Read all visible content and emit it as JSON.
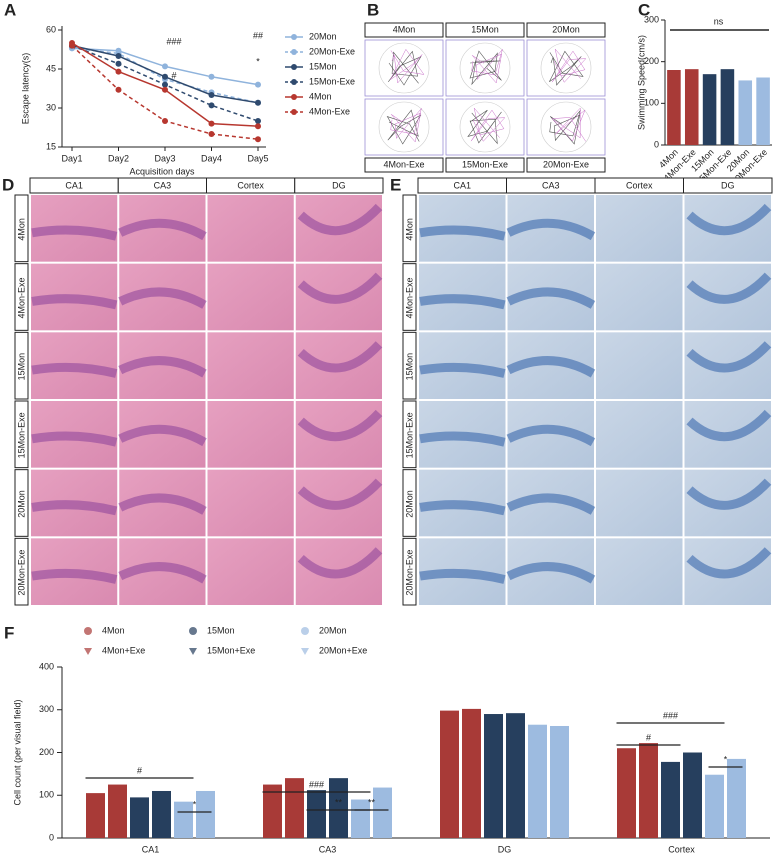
{
  "chart_data": [
    {
      "type": "line",
      "label": "A",
      "ylabel": "Escape latency(s)",
      "xlabel": "Acquisition days",
      "categories": [
        "Day1",
        "Day2",
        "Day3",
        "Day4",
        "Day5"
      ],
      "ylim": [
        15,
        60
      ],
      "yticks": [
        15,
        30,
        45,
        60
      ],
      "series": [
        {
          "name": "20Mon",
          "color": "#8fb3dc",
          "dashed": false,
          "values": [
            53,
            52,
            46,
            42,
            39
          ]
        },
        {
          "name": "20Mon-Exe",
          "color": "#8fb3dc",
          "dashed": true,
          "values": [
            53,
            51,
            41,
            36,
            32
          ]
        },
        {
          "name": "15Mon",
          "color": "#2f4a6e",
          "dashed": false,
          "values": [
            54,
            50,
            42,
            35,
            32
          ]
        },
        {
          "name": "15Mon-Exe",
          "color": "#2f4a6e",
          "dashed": true,
          "values": [
            54,
            47,
            39,
            31,
            25
          ]
        },
        {
          "name": "4Mon",
          "color": "#b7372f",
          "dashed": false,
          "values": [
            55,
            44,
            37,
            24,
            23
          ]
        },
        {
          "name": "4Mon-Exe",
          "color": "#b7372f",
          "dashed": true,
          "values": [
            54,
            37,
            25,
            20,
            18
          ]
        }
      ],
      "annotations": [
        "###",
        "#",
        "##",
        "*"
      ]
    },
    {
      "type": "bar",
      "label": "C",
      "ylabel": "Swimming Speed(cm/s)",
      "categories": [
        "4Mon",
        "4Mon-Exe",
        "15Mon",
        "15Mon-Exe",
        "20Mon",
        "20Mon-Exe"
      ],
      "values": [
        180,
        182,
        170,
        182,
        155,
        162
      ],
      "colors": [
        "#a83a37",
        "#a83a37",
        "#263f5e",
        "#263f5e",
        "#9dbbe0",
        "#9dbbe0"
      ],
      "ylim": [
        0,
        300
      ],
      "yticks": [
        0,
        100,
        200,
        300
      ],
      "annotations": [
        "ns"
      ]
    },
    {
      "type": "grouped_bar",
      "label": "F",
      "ylabel": "Cell count (per visual field)",
      "categories": [
        "CA1",
        "CA3",
        "DG",
        "Cortex"
      ],
      "ylim": [
        0,
        400
      ],
      "yticks": [
        0,
        100,
        200,
        300,
        400
      ],
      "series": [
        {
          "name": "4Mon",
          "color": "#a83a37",
          "values": [
            105,
            125,
            298,
            210
          ]
        },
        {
          "name": "4Mon+Exe",
          "color": "#a83a37",
          "values": [
            125,
            140,
            302,
            222
          ]
        },
        {
          "name": "15Mon",
          "color": "#263f5e",
          "values": [
            95,
            112,
            290,
            178
          ]
        },
        {
          "name": "15Mon+Exe",
          "color": "#263f5e",
          "values": [
            110,
            140,
            292,
            200
          ]
        },
        {
          "name": "20Mon",
          "color": "#9dbbe0",
          "values": [
            85,
            90,
            265,
            148
          ]
        },
        {
          "name": "20Mon+Exe",
          "color": "#9dbbe0",
          "values": [
            110,
            118,
            262,
            185
          ]
        }
      ],
      "annotations": [
        "#",
        "*",
        "###",
        "**",
        "**",
        "###",
        "#",
        "*"
      ]
    }
  ],
  "maze": {
    "label": "B",
    "top": [
      "4Mon",
      "15Mon",
      "20Mon"
    ],
    "bottom": [
      "4Mon-Exe",
      "15Mon-Exe",
      "20Mon-Exe"
    ]
  },
  "he_stain": {
    "label": "D",
    "columns": [
      "CA1",
      "CA3",
      "Cortex",
      "DG"
    ],
    "rows": [
      "4Mon",
      "4Mon-Exe",
      "15Mon",
      "15Mon-Exe",
      "20Mon",
      "20Mon-Exe"
    ]
  },
  "nissl_stain": {
    "label": "E",
    "columns": [
      "CA1",
      "CA3",
      "Cortex",
      "DG"
    ],
    "rows": [
      "4Mon",
      "4Mon-Exe",
      "15Mon",
      "15Mon-Exe",
      "20Mon",
      "20Mon-Exe"
    ]
  }
}
